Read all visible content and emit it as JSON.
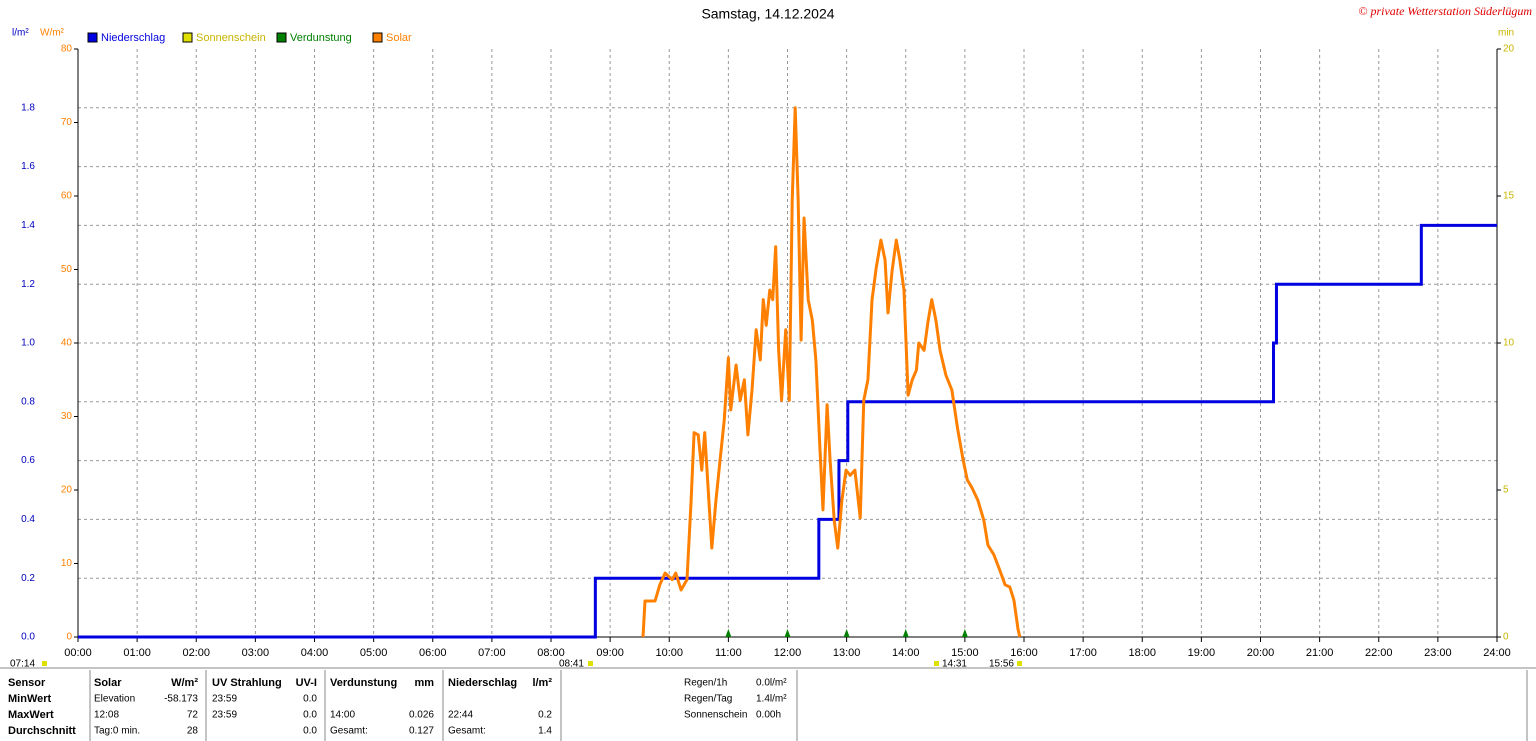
{
  "chart_data": {
    "type": "line",
    "title": "Samstag, 14.12.2024",
    "copyright": "© private Wetterstation Süderlügum",
    "ylabel": "l/m²",
    "y2label": "W/m²",
    "y3label": "min",
    "xlim": [
      0,
      24
    ],
    "xticks": [
      {
        "value": 0,
        "label": "00:00"
      },
      {
        "value": 1,
        "label": "01:00"
      },
      {
        "value": 2,
        "label": "02:00"
      },
      {
        "value": 3,
        "label": "03:00"
      },
      {
        "value": 4,
        "label": "04:00"
      },
      {
        "value": 5,
        "label": "05:00"
      },
      {
        "value": 6,
        "label": "06:00"
      },
      {
        "value": 7,
        "label": "07:00"
      },
      {
        "value": 8,
        "label": "08:00"
      },
      {
        "value": 9,
        "label": "09:00"
      },
      {
        "value": 10,
        "label": "10:00"
      },
      {
        "value": 11,
        "label": "11:00"
      },
      {
        "value": 12,
        "label": "12:00"
      },
      {
        "value": 13,
        "label": "13:00"
      },
      {
        "value": 14,
        "label": "14:00"
      },
      {
        "value": 15,
        "label": "15:00"
      },
      {
        "value": 16,
        "label": "16:00"
      },
      {
        "value": 17,
        "label": "17:00"
      },
      {
        "value": 18,
        "label": "18:00"
      },
      {
        "value": 19,
        "label": "19:00"
      },
      {
        "value": 20,
        "label": "20:00"
      },
      {
        "value": 21,
        "label": "21:00"
      },
      {
        "value": 22,
        "label": "22:00"
      },
      {
        "value": 23,
        "label": "23:00"
      },
      {
        "value": 24,
        "label": "24:00"
      }
    ],
    "ylim": [
      0,
      2
    ],
    "yticks": [
      {
        "value": 0,
        "label": "0.0"
      },
      0.2,
      0.4,
      0.6,
      0.8,
      {
        "value": 1,
        "label": "1.0"
      },
      1.2,
      1.4,
      1.6,
      1.8
    ],
    "y2lim": [
      0,
      80
    ],
    "y2ticks": [
      0,
      10,
      20,
      30,
      40,
      50,
      60,
      70,
      80
    ],
    "y3lim": [
      0,
      20
    ],
    "y3ticks": [
      0,
      5,
      10,
      15,
      20
    ],
    "grid": true,
    "series": [
      {
        "name": "Niederschlag",
        "color": "#0000e0",
        "style": "step",
        "x": [
          0,
          8.75,
          12.53,
          12.87,
          13.02,
          20.22,
          20.27,
          22.72,
          24
        ],
        "values": [
          0,
          0.2,
          0.4,
          0.6,
          0.8,
          1.0,
          1.2,
          1.4,
          1.4
        ]
      },
      {
        "name": "Sonnenschein",
        "color": "#e0e000"
      },
      {
        "name": "Verdunstung",
        "color": "#008000",
        "style": "event",
        "x": [
          11,
          12,
          13,
          14,
          15
        ]
      },
      {
        "name": "Solar",
        "color": "#ff8000",
        "axis": "y2",
        "style": "line",
        "x": [
          9.556,
          9.59,
          9.76,
          9.84,
          9.93,
          10.05,
          10.11,
          10.2,
          10.3,
          10.37,
          10.42,
          10.49,
          10.55,
          10.6,
          10.67,
          10.72,
          10.79,
          10.86,
          10.93,
          11.0,
          11.04,
          11.13,
          11.2,
          11.27,
          11.33,
          11.4,
          11.47,
          11.54,
          11.59,
          11.64,
          11.7,
          11.75,
          11.8,
          11.85,
          11.9,
          11.97,
          12.03,
          12.08,
          12.13,
          12.18,
          12.23,
          12.28,
          12.35,
          12.42,
          12.48,
          12.55,
          12.6,
          12.67,
          12.72,
          12.79,
          12.85,
          12.92,
          12.99,
          13.06,
          13.14,
          13.23,
          13.29,
          13.36,
          13.43,
          13.5,
          13.58,
          13.65,
          13.7,
          13.77,
          13.84,
          13.9,
          13.97,
          14.04,
          14.11,
          14.18,
          14.22,
          14.31,
          14.38,
          14.44,
          14.51,
          14.58,
          14.68,
          14.78,
          14.88,
          14.97,
          15.04,
          15.12,
          15.22,
          15.32,
          15.39,
          15.49,
          15.59,
          15.68,
          15.76,
          15.83,
          15.9,
          15.93
        ],
        "values": [
          0,
          4.9,
          4.9,
          7.1,
          8.7,
          7.8,
          8.7,
          6.4,
          7.8,
          18.6,
          27.8,
          27.5,
          22.7,
          27.8,
          18.6,
          12.1,
          18.6,
          24.1,
          29.5,
          38.0,
          30.9,
          37.0,
          32.2,
          35.0,
          27.5,
          33.6,
          41.8,
          37.7,
          45.9,
          42.4,
          47.2,
          45.9,
          53.1,
          39.0,
          32.2,
          41.8,
          32.2,
          59.5,
          72,
          59.5,
          40.4,
          57.0,
          45.9,
          43.1,
          37.7,
          25.4,
          17.3,
          31.6,
          24.1,
          15.9,
          12.1,
          18.6,
          22.7,
          22.0,
          22.7,
          16.2,
          32.2,
          35.0,
          45.9,
          50.2,
          54.0,
          51.3,
          44.1,
          49.9,
          54.0,
          51.3,
          47.2,
          32.9,
          35.0,
          36.3,
          40.0,
          39.0,
          43.1,
          45.9,
          43.1,
          39.0,
          35.6,
          33.6,
          28.2,
          24.1,
          21.4,
          20.3,
          18.6,
          15.9,
          12.5,
          11.2,
          9.1,
          7.1,
          6.8,
          5.0,
          1.0,
          0
        ]
      }
    ],
    "time_labels": [
      "07:14",
      "08:41",
      "14:31",
      "15:56"
    ]
  },
  "stats": {
    "headers": [
      "Sensor",
      "Solar",
      "W/m²",
      "UV Strahlung",
      "UV-I",
      "Verdunstung",
      "mm",
      "Niederschlag",
      "l/m²"
    ],
    "rows": [
      [
        "MinWert",
        "Elevation",
        "-58.173",
        "23:59",
        "0.0",
        null,
        null,
        null,
        null
      ],
      [
        "MaxWert",
        "12:08",
        "72",
        "23:59",
        "0.0",
        "14:00",
        "0.026",
        "22:44",
        "0.2"
      ],
      [
        "Durchschnitt",
        "Tag:0 min.",
        "28",
        null,
        "0.0",
        "Gesamt:",
        "0.127",
        "Gesamt:",
        "1.4"
      ]
    ],
    "extra": [
      [
        "Regen/1h",
        "0.0l/m²"
      ],
      [
        "Regen/Tag",
        "1.4l/m²"
      ],
      [
        "Sonnenschein",
        "0.00h"
      ]
    ]
  }
}
